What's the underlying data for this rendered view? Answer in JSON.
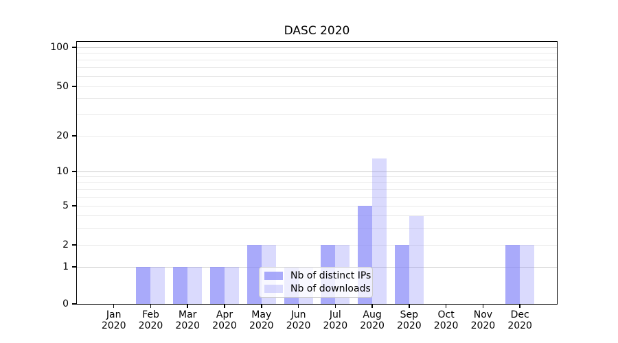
{
  "chart_data": {
    "type": "bar",
    "title": "DASC 2020",
    "categories": [
      {
        "month": "Jan",
        "year": "2020"
      },
      {
        "month": "Feb",
        "year": "2020"
      },
      {
        "month": "Mar",
        "year": "2020"
      },
      {
        "month": "Apr",
        "year": "2020"
      },
      {
        "month": "May",
        "year": "2020"
      },
      {
        "month": "Jun",
        "year": "2020"
      },
      {
        "month": "Jul",
        "year": "2020"
      },
      {
        "month": "Aug",
        "year": "2020"
      },
      {
        "month": "Sep",
        "year": "2020"
      },
      {
        "month": "Oct",
        "year": "2020"
      },
      {
        "month": "Nov",
        "year": "2020"
      },
      {
        "month": "Dec",
        "year": "2020"
      }
    ],
    "series": [
      {
        "name": "Nb of distinct IPs",
        "color": "rgba(132,134,248,0.7)",
        "values": [
          0,
          1,
          1,
          1,
          2,
          1,
          2,
          5,
          2,
          0,
          0,
          2
        ]
      },
      {
        "name": "Nb of downloads",
        "color": "rgba(132,134,248,0.3)",
        "values": [
          0,
          1,
          1,
          1,
          2,
          1,
          2,
          13,
          4,
          0,
          0,
          2
        ]
      }
    ],
    "yscale": "log1p",
    "ylim": [
      0,
      110
    ],
    "yticks": [
      0,
      1,
      2,
      5,
      10,
      20,
      50,
      100
    ],
    "minor_yticks": [
      2,
      3,
      4,
      5,
      6,
      7,
      8,
      9,
      20,
      30,
      40,
      50,
      60,
      70,
      80,
      90
    ],
    "major_gridlines": [
      1,
      10,
      100
    ],
    "xlabel": "",
    "ylabel": "",
    "grid": "horizontal",
    "legend_position": "lower center"
  }
}
